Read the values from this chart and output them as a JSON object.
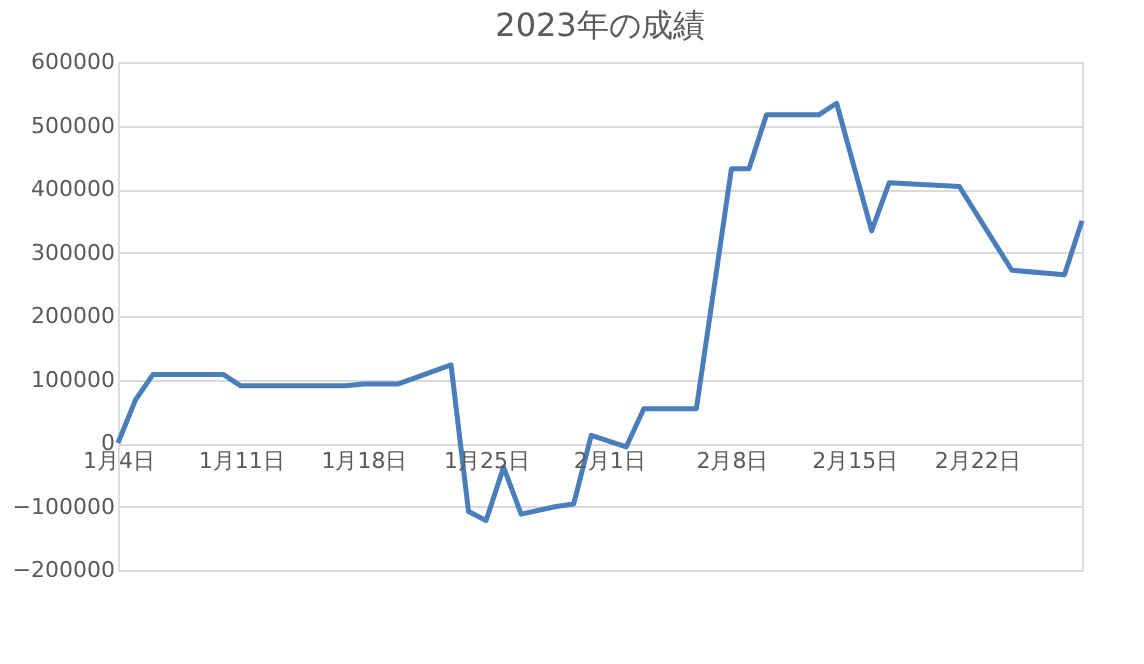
{
  "chart_data": {
    "type": "line",
    "title": "2023年の成績",
    "x": [
      "2023-01-04",
      "2023-01-05",
      "2023-01-06",
      "2023-01-10",
      "2023-01-11",
      "2023-01-17",
      "2023-01-18",
      "2023-01-20",
      "2023-01-23",
      "2023-01-24",
      "2023-01-25",
      "2023-01-26",
      "2023-01-27",
      "2023-01-29",
      "2023-01-30",
      "2023-01-31",
      "2023-02-02",
      "2023-02-03",
      "2023-02-06",
      "2023-02-08",
      "2023-02-09",
      "2023-02-10",
      "2023-02-13",
      "2023-02-14",
      "2023-02-16",
      "2023-02-17",
      "2023-02-21",
      "2023-02-24",
      "2023-02-27",
      "2023-02-28"
    ],
    "series": [
      {
        "color": "#4a7ebb",
        "values": [
          0,
          68000,
          108000,
          108000,
          90000,
          90000,
          93000,
          93000,
          123000,
          -108000,
          -122000,
          -38000,
          -112000,
          -100000,
          -96000,
          12000,
          -6000,
          54000,
          54000,
          432000,
          432000,
          517000,
          517000,
          535000,
          334000,
          410000,
          404000,
          272000,
          265000,
          350000
        ]
      }
    ],
    "xlim": [
      "2023-01-04",
      "2023-02-28"
    ],
    "xticks": [
      {
        "value": "2023-01-04",
        "label": "1月4日"
      },
      {
        "value": "2023-01-11",
        "label": "1月11日"
      },
      {
        "value": "2023-01-18",
        "label": "1月18日"
      },
      {
        "value": "2023-01-25",
        "label": "1月25日"
      },
      {
        "value": "2023-02-01",
        "label": "2月1日"
      },
      {
        "value": "2023-02-08",
        "label": "2月8日"
      },
      {
        "value": "2023-02-15",
        "label": "2月15日"
      },
      {
        "value": "2023-02-22",
        "label": "2月22日"
      }
    ],
    "ylim": [
      -200000,
      600000
    ],
    "yticks": [
      -200000,
      -100000,
      0,
      100000,
      200000,
      300000,
      400000,
      500000,
      600000
    ],
    "grid": "y",
    "legend": false,
    "marker": "none",
    "line_style": "solid"
  }
}
